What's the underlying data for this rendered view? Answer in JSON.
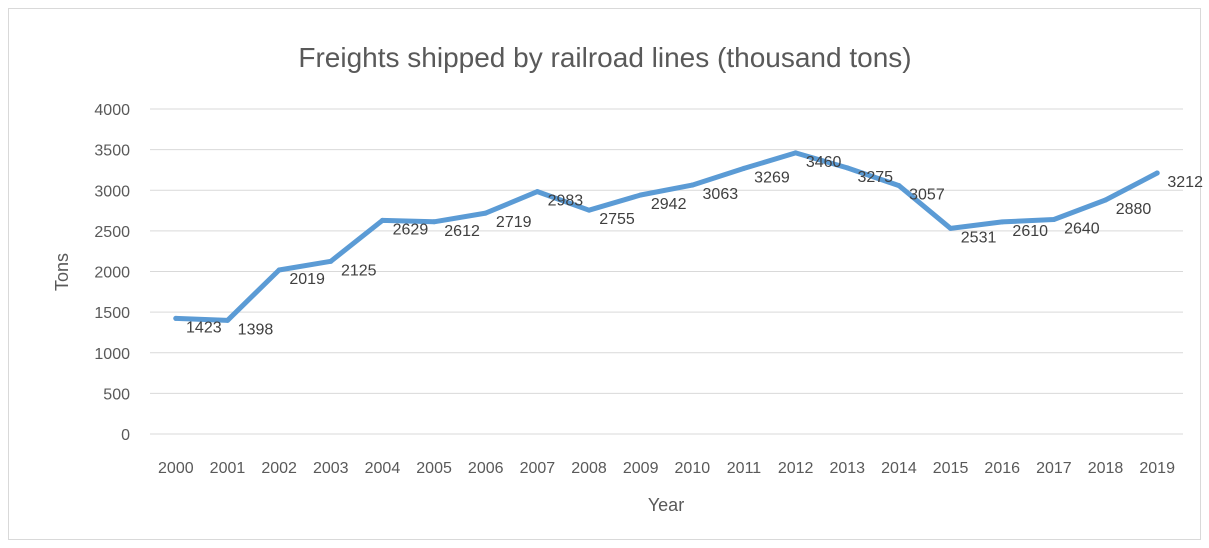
{
  "chart_data": {
    "type": "line",
    "title": "Freights shipped by railroad lines (thousand tons)",
    "xlabel": "Year",
    "ylabel": "Tons",
    "ylim": [
      0,
      4000
    ],
    "yticks": [
      "0",
      "500",
      "1000",
      "1500",
      "2000",
      "2500",
      "3000",
      "3500",
      "4000"
    ],
    "categories": [
      "2000",
      "2001",
      "2002",
      "2003",
      "2004",
      "2005",
      "2006",
      "2007",
      "2008",
      "2009",
      "2010",
      "2011",
      "2012",
      "2013",
      "2014",
      "2015",
      "2016",
      "2017",
      "2018",
      "2019"
    ],
    "series": [
      {
        "values": [
          1423,
          1398,
          2019,
          2125,
          2629,
          2612,
          2719,
          2983,
          2755,
          2942,
          3063,
          3269,
          3460,
          3275,
          3057,
          2531,
          2610,
          2640,
          2880,
          3212
        ],
        "color": "#5b9bd5"
      }
    ],
    "data_labels": [
      "1423",
      "1398",
      "2019",
      "2125",
      "2629",
      "2612",
      "2719",
      "2983",
      "2755",
      "2942",
      "3063",
      "3269",
      "3460",
      "3275",
      "3057",
      "2531",
      "2610",
      "2640",
      "2880",
      "3212"
    ],
    "grid": true,
    "legend": "none"
  }
}
